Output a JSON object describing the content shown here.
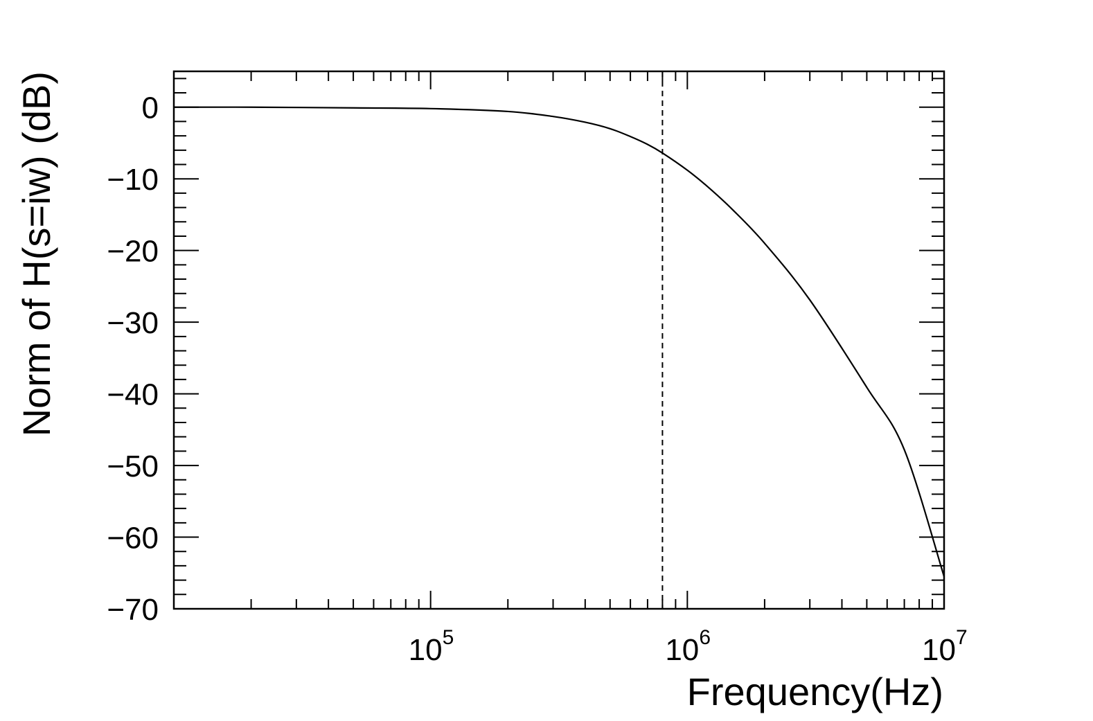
{
  "chart_data": {
    "type": "line",
    "title": "",
    "xlabel": "Frequency(Hz)",
    "ylabel": "Norm of H(s=iw) (dB)",
    "xscale": "log",
    "xlim": [
      10000,
      10000000
    ],
    "ylim": [
      -70,
      5
    ],
    "x_ticks": [
      {
        "value": 100000,
        "base": "10",
        "exp": "5"
      },
      {
        "value": 1000000,
        "base": "10",
        "exp": "6"
      },
      {
        "value": 10000000,
        "base": "10",
        "exp": "7"
      }
    ],
    "y_ticks": [
      {
        "value": 0,
        "label": "0"
      },
      {
        "value": -10,
        "label": "−10"
      },
      {
        "value": -20,
        "label": "−20"
      },
      {
        "value": -30,
        "label": "−30"
      },
      {
        "value": -40,
        "label": "−40"
      },
      {
        "value": -50,
        "label": "−50"
      },
      {
        "value": -60,
        "label": "−60"
      },
      {
        "value": -70,
        "label": "−70"
      }
    ],
    "series": [
      {
        "x": [
          10000,
          20000,
          50000,
          100000,
          200000,
          300000,
          400000,
          500000,
          600000,
          700000,
          800000,
          1000000,
          1200000,
          1500000,
          2000000,
          3000000,
          5000000,
          7000000,
          10000000
        ],
        "y": [
          0.0,
          0.0,
          -0.1,
          -0.2,
          -0.6,
          -1.3,
          -2.1,
          -3.0,
          -4.1,
          -5.2,
          -6.4,
          -8.8,
          -11.1,
          -14.3,
          -19.0,
          -26.9,
          -39.1,
          -47.8,
          -65.5
        ],
        "color": "#000000",
        "line_style": "solid"
      }
    ],
    "reference_lines": [
      {
        "orientation": "vertical",
        "x": 800000,
        "line_style": "dashed",
        "color": "#000000"
      }
    ],
    "grid": false,
    "legend": "none"
  }
}
